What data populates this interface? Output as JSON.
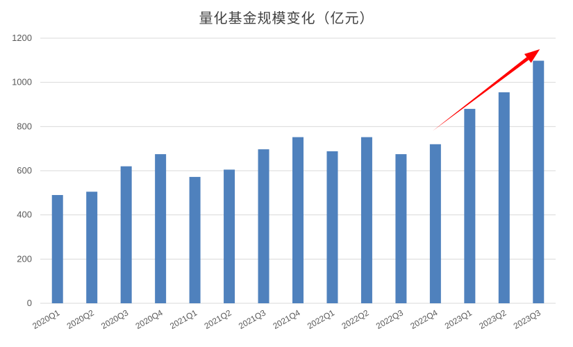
{
  "chart_data": {
    "type": "bar",
    "title": "量化基金规模变化（亿元）",
    "xlabel": "",
    "ylabel": "",
    "categories": [
      "2020Q1",
      "2020Q2",
      "2020Q3",
      "2020Q4",
      "2021Q1",
      "2021Q2",
      "2021Q3",
      "2021Q4",
      "2022Q1",
      "2022Q2",
      "2022Q3",
      "2022Q4",
      "2023Q1",
      "2023Q2",
      "2023Q3"
    ],
    "values": [
      490,
      505,
      620,
      675,
      572,
      605,
      697,
      752,
      688,
      752,
      675,
      720,
      880,
      955,
      1098
    ],
    "ylim": [
      0,
      1200
    ],
    "yticks": [
      0,
      200,
      400,
      600,
      800,
      1000,
      1200
    ],
    "grid": true,
    "bar_color": "#4f81bd",
    "annotation": {
      "type": "arrow",
      "color": "#ff0000",
      "from": {
        "x": "2022Q4",
        "y": 780
      },
      "to": {
        "x": "2023Q3",
        "y": 1150
      }
    }
  }
}
